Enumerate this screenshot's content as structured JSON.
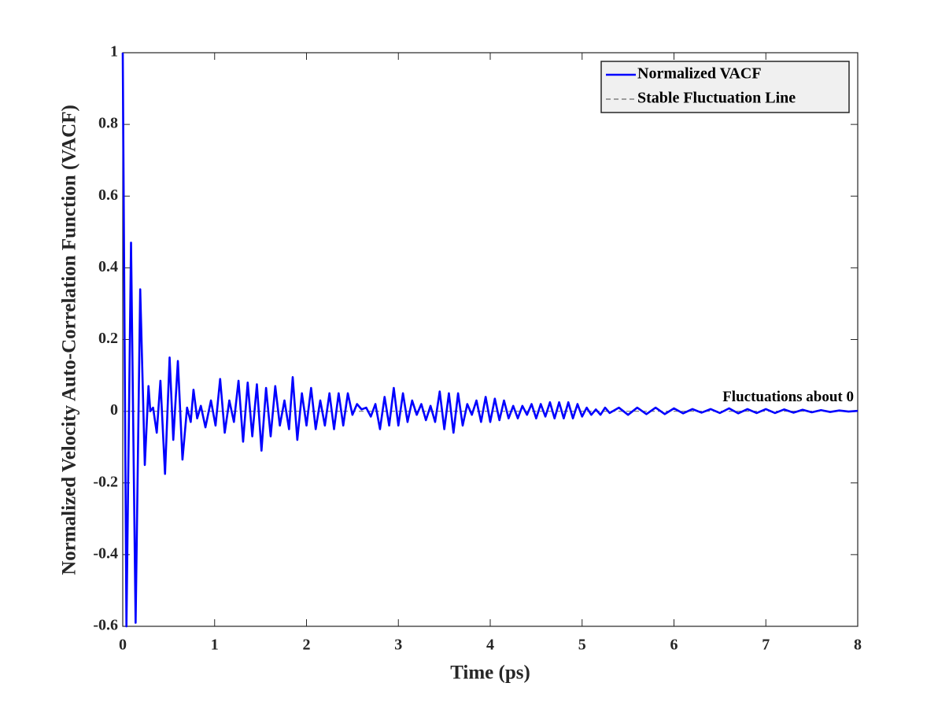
{
  "chart_data": {
    "type": "line",
    "xlabel": "Time (ps)",
    "ylabel": "Normalized Velocity Auto-Correlation Function (VACF)",
    "xlim": [
      0,
      8
    ],
    "ylim": [
      -0.6,
      1
    ],
    "xticks": [
      0,
      1,
      2,
      3,
      4,
      5,
      6,
      7,
      8
    ],
    "yticks": [
      -0.6,
      -0.4,
      -0.2,
      0,
      0.2,
      0.4,
      0.6,
      0.8,
      1
    ],
    "grid": false,
    "legend": "upper right",
    "annotation": {
      "text": "Fluctuations about 0",
      "x": 8,
      "y": 0.02
    },
    "series": [
      {
        "name": "Normalized VACF",
        "color": "#0000ff",
        "dash": false,
        "x": [
          0,
          0.04,
          0.09,
          0.14,
          0.19,
          0.24,
          0.28,
          0.3,
          0.33,
          0.37,
          0.41,
          0.46,
          0.51,
          0.55,
          0.6,
          0.65,
          0.7,
          0.74,
          0.77,
          0.81,
          0.85,
          0.9,
          0.96,
          1.01,
          1.06,
          1.11,
          1.16,
          1.21,
          1.26,
          1.31,
          1.36,
          1.41,
          1.46,
          1.51,
          1.56,
          1.61,
          1.66,
          1.71,
          1.76,
          1.81,
          1.85,
          1.9,
          1.95,
          2.0,
          2.05,
          2.1,
          2.15,
          2.2,
          2.25,
          2.3,
          2.35,
          2.4,
          2.45,
          2.5,
          2.55,
          2.6,
          2.65,
          2.7,
          2.75,
          2.8,
          2.85,
          2.9,
          2.95,
          3.0,
          3.05,
          3.1,
          3.15,
          3.2,
          3.25,
          3.3,
          3.35,
          3.4,
          3.45,
          3.5,
          3.55,
          3.6,
          3.65,
          3.7,
          3.75,
          3.8,
          3.85,
          3.9,
          3.95,
          4.0,
          4.05,
          4.1,
          4.15,
          4.2,
          4.25,
          4.3,
          4.35,
          4.4,
          4.45,
          4.5,
          4.55,
          4.6,
          4.65,
          4.7,
          4.75,
          4.8,
          4.85,
          4.9,
          4.95,
          5.0,
          5.05,
          5.1,
          5.15,
          5.2,
          5.25,
          5.3,
          5.4,
          5.5,
          5.6,
          5.7,
          5.8,
          5.9,
          6.0,
          6.1,
          6.2,
          6.3,
          6.4,
          6.5,
          6.6,
          6.7,
          6.8,
          6.9,
          7.0,
          7.1,
          7.2,
          7.3,
          7.4,
          7.5,
          7.6,
          7.7,
          7.8,
          7.9,
          8.0
        ],
        "values": [
          1,
          -0.6,
          0.47,
          -0.59,
          0.34,
          -0.15,
          0.07,
          0,
          0.01,
          -0.06,
          0.085,
          -0.175,
          0.15,
          -0.08,
          0.14,
          -0.135,
          0.01,
          -0.03,
          0.06,
          -0.02,
          0.015,
          -0.045,
          0.03,
          -0.04,
          0.09,
          -0.06,
          0.03,
          -0.03,
          0.085,
          -0.085,
          0.08,
          -0.07,
          0.075,
          -0.11,
          0.065,
          -0.07,
          0.07,
          -0.04,
          0.03,
          -0.05,
          0.095,
          -0.08,
          0.05,
          -0.04,
          0.065,
          -0.05,
          0.03,
          -0.04,
          0.05,
          -0.05,
          0.05,
          -0.04,
          0.05,
          -0.01,
          0.02,
          0.005,
          0.01,
          -0.015,
          0.02,
          -0.05,
          0.04,
          -0.04,
          0.065,
          -0.04,
          0.05,
          -0.03,
          0.03,
          -0.01,
          0.02,
          -0.025,
          0.015,
          -0.03,
          0.055,
          -0.05,
          0.05,
          -0.06,
          0.05,
          -0.04,
          0.02,
          -0.01,
          0.03,
          -0.03,
          0.04,
          -0.03,
          0.035,
          -0.025,
          0.03,
          -0.02,
          0.015,
          -0.02,
          0.015,
          -0.01,
          0.02,
          -0.02,
          0.02,
          -0.015,
          0.025,
          -0.02,
          0.025,
          -0.02,
          0.025,
          -0.02,
          0.02,
          -0.015,
          0.01,
          -0.01,
          0.005,
          -0.01,
          0.01,
          -0.005,
          0.01,
          -0.01,
          0.01,
          -0.008,
          0.01,
          -0.008,
          0.008,
          -0.006,
          0.006,
          -0.004,
          0.006,
          -0.005,
          0.008,
          -0.006,
          0.006,
          -0.005,
          0.006,
          -0.005,
          0.005,
          -0.004,
          0.004,
          -0.003,
          0.003,
          -0.002,
          0.002,
          -0.001,
          0.001
        ]
      },
      {
        "name": "Stable Fluctuation Line",
        "color": "#808080",
        "dash": true,
        "x": [
          0,
          8
        ],
        "values": [
          0,
          0
        ]
      }
    ]
  }
}
